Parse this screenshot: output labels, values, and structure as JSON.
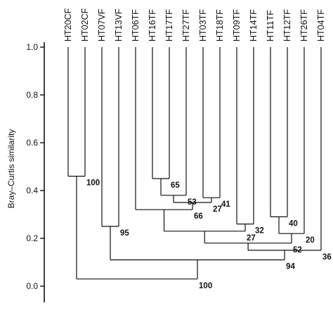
{
  "chart_data": {
    "type": "dendrogram",
    "ylabel": "Bray–Curtis similarity",
    "ylim": [
      0.0,
      1.0
    ],
    "yticks": [
      "0.0",
      "0.2",
      "0.4",
      "0.6",
      "0.8",
      "1.0"
    ],
    "leaves": [
      "HT20CF",
      "HT02CF",
      "HT07VF",
      "HT13VF",
      "HT06TF",
      "HT16TF",
      "HT17TF",
      "HT27TF",
      "HT03TF",
      "HT18TF",
      "HT09TF",
      "HT14TF",
      "HT11TF",
      "HT12TF",
      "HT26TF",
      "HT04TF"
    ],
    "merges": [
      {
        "id": "A",
        "children": [
          "HT20CF",
          "HT02CF"
        ],
        "similarity": 0.46,
        "label": "100"
      },
      {
        "id": "B",
        "children": [
          "HT16TF",
          "HT17TF"
        ],
        "similarity": 0.45,
        "label": "65"
      },
      {
        "id": "C",
        "children": [
          "B",
          "HT27TF"
        ],
        "similarity": 0.38,
        "label": "53"
      },
      {
        "id": "D",
        "children": [
          "HT03TF",
          "HT18TF"
        ],
        "similarity": 0.37,
        "label": "41"
      },
      {
        "id": "E",
        "children": [
          "C",
          "D"
        ],
        "similarity": 0.35,
        "label": "27"
      },
      {
        "id": "F",
        "children": [
          "HT06TF",
          "E"
        ],
        "similarity": 0.32,
        "label": "66"
      },
      {
        "id": "G",
        "children": [
          "HT11TF",
          "HT12TF"
        ],
        "similarity": 0.29,
        "label": "40"
      },
      {
        "id": "H",
        "children": [
          "HT09TF",
          "HT14TF"
        ],
        "similarity": 0.26,
        "label": "32"
      },
      {
        "id": "I",
        "children": [
          "HT07VF",
          "HT13VF"
        ],
        "similarity": 0.25,
        "label": "95"
      },
      {
        "id": "J",
        "children": [
          "F",
          "H"
        ],
        "similarity": 0.23,
        "label": "27"
      },
      {
        "id": "K",
        "children": [
          "G",
          "HT26TF"
        ],
        "similarity": 0.22,
        "label": "20"
      },
      {
        "id": "L",
        "children": [
          "J",
          "K"
        ],
        "similarity": 0.18,
        "label": "52"
      },
      {
        "id": "M",
        "children": [
          "L",
          "HT04TF"
        ],
        "similarity": 0.15,
        "label": "36"
      },
      {
        "id": "N",
        "children": [
          "I",
          "M"
        ],
        "similarity": 0.11,
        "label": "94"
      },
      {
        "id": "O",
        "children": [
          "A",
          "N"
        ],
        "similarity": 0.03,
        "label": "100"
      }
    ]
  }
}
